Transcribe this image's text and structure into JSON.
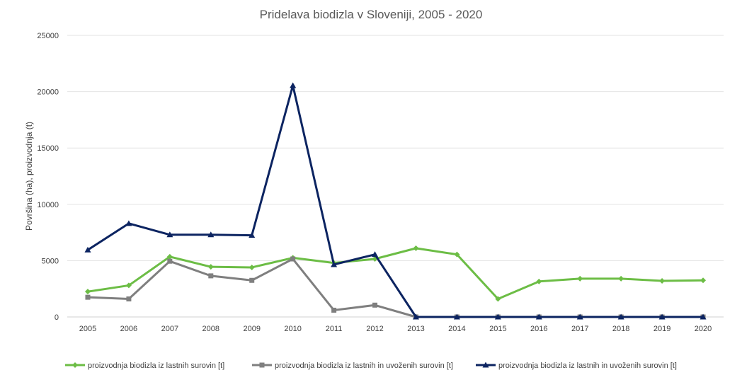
{
  "chart_data": {
    "type": "line",
    "title": "Pridelava biodizla v Sloveniji, 2005 - 2020",
    "xlabel": "",
    "ylabel": "Površina (ha), proizvodnja (t)",
    "ylim": [
      0,
      25000
    ],
    "yticks": [
      "0",
      "5000",
      "10000",
      "15000",
      "20000",
      "25000"
    ],
    "categories": [
      "2005",
      "2006",
      "2007",
      "2008",
      "2009",
      "2010",
      "2011",
      "2012",
      "2013",
      "2014",
      "2015",
      "2016",
      "2017",
      "2018",
      "2019",
      "2020"
    ],
    "grid": true,
    "legend_position": "bottom",
    "series": [
      {
        "name": "proizvodnja biodizla iz lastnih surovin [t]",
        "color": "#6cbd45",
        "marker": "diamond",
        "values": [
          2250,
          2800,
          5350,
          4450,
          4400,
          5250,
          4800,
          5150,
          6100,
          5550,
          1600,
          3150,
          3400,
          3400,
          3200,
          3250
        ]
      },
      {
        "name": "proizvodnja biodizla iz lastnih in uvoženih surovin [t]",
        "color": "#7f7f7f",
        "marker": "square",
        "values": [
          1750,
          1600,
          4950,
          3650,
          3250,
          5150,
          600,
          1050,
          0,
          0,
          0,
          0,
          0,
          0,
          0,
          0
        ]
      },
      {
        "name": "proizvodnja biodizla iz lastnih in uvoženih surovin [t]",
        "color": "#0c2461",
        "marker": "triangle",
        "values": [
          5950,
          8300,
          7300,
          7300,
          7250,
          20550,
          4650,
          5550,
          0,
          0,
          0,
          0,
          0,
          0,
          0,
          0
        ]
      }
    ]
  }
}
